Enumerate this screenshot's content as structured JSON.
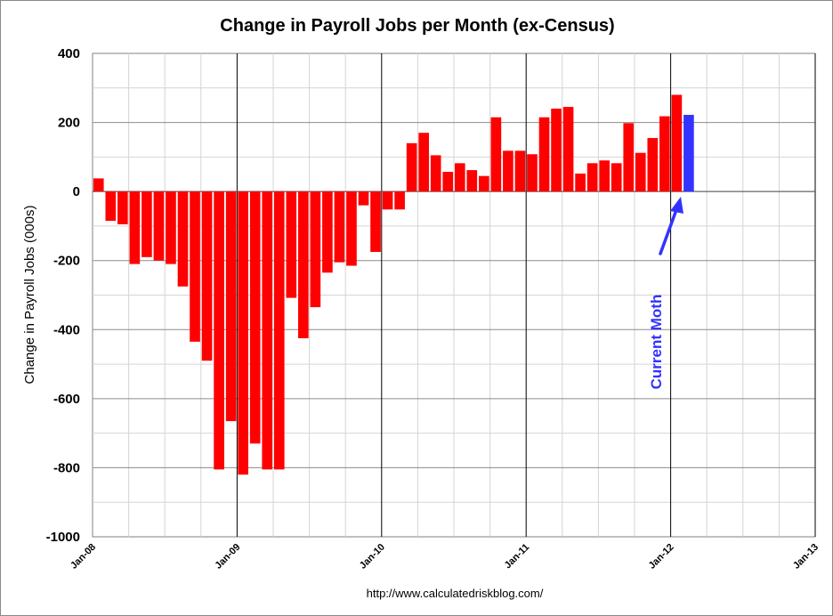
{
  "chart_data": {
    "type": "bar",
    "title": "Change in Payroll Jobs per Month (ex-Census)",
    "ylabel": "Change in Payroll Jobs (000s)",
    "xlabel": "",
    "source": "http://www.calculatedriskblog.com/",
    "ylim": [
      -1000,
      400
    ],
    "yticks": [
      "400",
      "200",
      "0",
      "-200",
      "-400",
      "-600",
      "-800",
      "-1000"
    ],
    "x_tick_labels": [
      "Jan-08",
      "Jan-09",
      "Jan-10",
      "Jan-11",
      "Jan-12",
      "Jan-13"
    ],
    "x_start": "Jan-08",
    "x_end": "Jan-13",
    "grid": true,
    "bar_color": "#ff0000",
    "highlight_color": "#3333ff",
    "highlight_index": 49,
    "annotation": {
      "text": "Current Moth",
      "color": "#3333ff"
    },
    "values": [
      38,
      -85,
      -95,
      -210,
      -190,
      -200,
      -210,
      -275,
      -435,
      -490,
      -805,
      -665,
      -820,
      -730,
      -805,
      -805,
      -308,
      -425,
      -335,
      -235,
      -205,
      -215,
      -40,
      -175,
      -52,
      -52,
      140,
      170,
      105,
      57,
      82,
      62,
      45,
      215,
      118,
      118,
      108,
      215,
      240,
      245,
      52,
      82,
      90,
      82,
      198,
      112,
      155,
      218,
      280,
      222
    ]
  }
}
